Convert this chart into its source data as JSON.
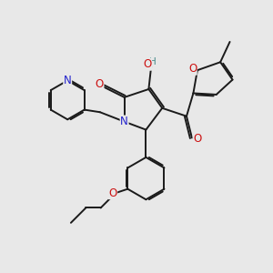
{
  "bg_color": "#e8e8e8",
  "bond_color": "#1a1a1a",
  "bond_width": 1.4,
  "dbo": 0.055,
  "atom_colors": {
    "N": "#2222cc",
    "O": "#cc1111",
    "H_color": "#448888",
    "C": "#1a1a1a"
  },
  "font_size": 8.5
}
